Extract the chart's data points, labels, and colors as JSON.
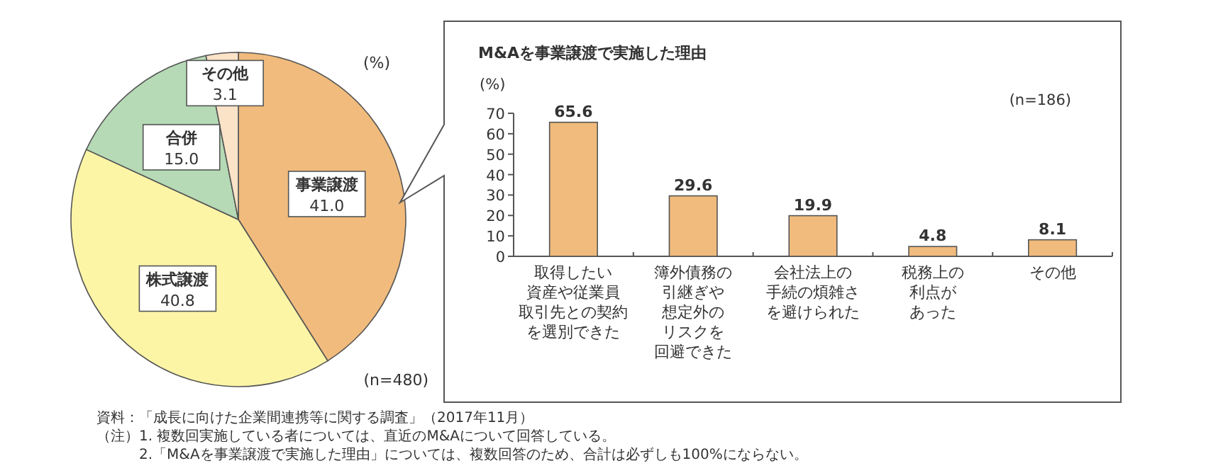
{
  "chart_data": [
    {
      "type": "pie",
      "categories": [
        "事業譲渡",
        "株式譲渡",
        "合併",
        "その他"
      ],
      "values": [
        41.0,
        40.8,
        15.0,
        3.1
      ],
      "colors": [
        "#f0bb7c",
        "#fdf5a6",
        "#b5dab5",
        "#fbe3c8"
      ],
      "value_labels": [
        "41.0",
        "40.8",
        "15.0",
        "3.1"
      ],
      "annotations": [
        "(%)",
        "(n=480)"
      ]
    },
    {
      "type": "bar",
      "title": "M&Aを事業譲渡で実施した理由",
      "ylabel": "(%)",
      "categories": [
        "取得したい資産や従業員取引先との契約を選別できた",
        "簿外債務の引継ぎや想定外のリスクを回避できた",
        "会社法上の手続の煩雑さを避けられた",
        "税務上の利点があった",
        "その他"
      ],
      "values": [
        65.6,
        29.6,
        19.9,
        4.8,
        8.1
      ],
      "color": "#f0bb7c",
      "ylim": [
        0,
        70
      ],
      "yticks": [
        0,
        10,
        20,
        30,
        40,
        50,
        60,
        70
      ],
      "data_labels": true,
      "annotations": [
        "(n=186)"
      ]
    },
    {
      "type": "other",
      "annotations": [
        "資料：「成長に向けた企業間連携等に関する調査」（2017年11月）",
        "（注）1. 複数回実施している者については、直近のM&Aについて回答している。",
        "　　　2.「M&Aを事業譲渡で実施した理由」については、複数回答のため、合計は必ずしも100%にならない。"
      ]
    }
  ]
}
